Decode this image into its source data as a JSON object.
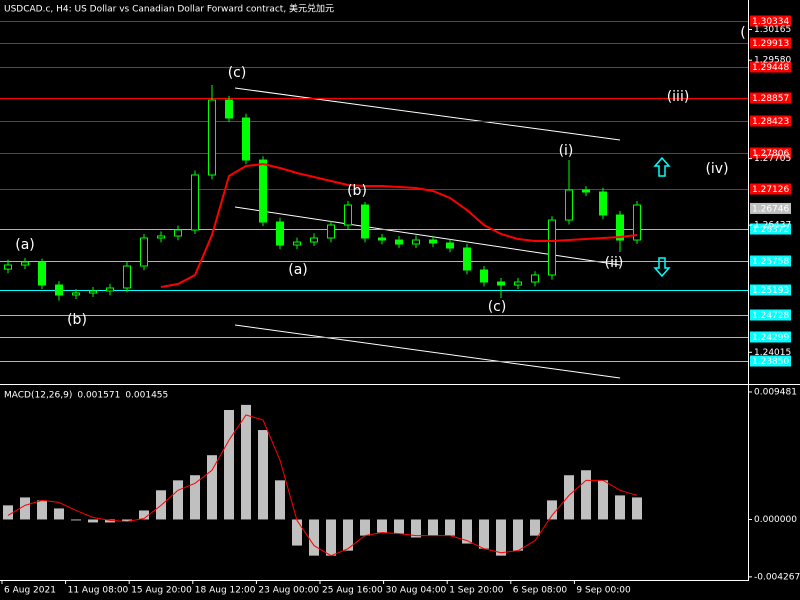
{
  "chart_data": [
    {
      "type": "candlestick",
      "title": "USDCAD.c, H4:  US Dollar vs Canadian Dollar Forward contract, 美元兑加元",
      "color": "#00ff00",
      "open": [
        1.256,
        1.25678,
        1.25735,
        1.25297,
        1.25107,
        1.25145,
        1.25183,
        1.2524,
        1.25659,
        1.26193,
        1.26231,
        1.26345,
        1.27393,
        1.28821,
        1.28479,
        1.27678,
        1.26497,
        1.26059,
        1.26116,
        1.26193,
        1.2644,
        1.26821,
        1.26193,
        1.26154,
        1.26078,
        1.26154,
        1.26097,
        1.26002,
        1.25583,
        1.25354,
        1.25297,
        1.25354,
        1.25488,
        1.26535,
        1.27107,
        1.27069,
        1.26631,
        1.26154
      ],
      "high": [
        1.2578,
        1.25815,
        1.258,
        1.2537,
        1.2522,
        1.2526,
        1.2532,
        1.2574,
        1.2627,
        1.2632,
        1.2643,
        1.2748,
        1.29107,
        1.289,
        1.2856,
        1.2775,
        1.2658,
        1.262,
        1.2628,
        1.2652,
        1.269,
        1.2688,
        1.2627,
        1.2623,
        1.2624,
        1.2623,
        1.2617,
        1.2608,
        1.2566,
        1.2543,
        1.2543,
        1.2556,
        1.2661,
        1.27678,
        1.2718,
        1.2715,
        1.2671,
        1.269
      ],
      "low": [
        1.2552,
        1.256,
        1.2522,
        1.25,
        1.2503,
        1.2507,
        1.251,
        1.2516,
        1.2558,
        1.2611,
        1.2615,
        1.2627,
        1.2731,
        1.284,
        1.276,
        1.2642,
        1.2598,
        1.2598,
        1.2604,
        1.2611,
        1.2636,
        1.2611,
        1.2607,
        1.26,
        1.26,
        1.2602,
        1.2592,
        1.255,
        1.2527,
        1.2505,
        1.2522,
        1.2527,
        1.254,
        1.2645,
        1.2699,
        1.2655,
        1.25926,
        1.2608
      ],
      "close": [
        1.25678,
        1.25735,
        1.25297,
        1.25107,
        1.25145,
        1.25183,
        1.2524,
        1.25659,
        1.26193,
        1.26231,
        1.26345,
        1.27393,
        1.28821,
        1.28479,
        1.27678,
        1.26497,
        1.26059,
        1.26116,
        1.26193,
        1.2644,
        1.26821,
        1.26193,
        1.26154,
        1.26078,
        1.26154,
        1.26097,
        1.26002,
        1.25583,
        1.25354,
        1.25297,
        1.25354,
        1.25488,
        1.26535,
        1.27107,
        1.27069,
        1.26631,
        1.26154,
        1.26821
      ],
      "ma": {
        "color": "#ff0000",
        "values": [
          null,
          null,
          null,
          null,
          null,
          null,
          null,
          null,
          null,
          1.25259,
          1.25316,
          1.25488,
          1.2625,
          1.27374,
          1.27564,
          1.27602,
          1.27526,
          1.27431,
          1.27355,
          1.27278,
          1.27202,
          1.27183,
          1.27183,
          1.27164,
          1.27145,
          1.27088,
          1.26955,
          1.26726,
          1.2644,
          1.26269,
          1.26173,
          1.26135,
          1.26135,
          1.26154,
          1.26173,
          1.26193,
          1.26212,
          1.2625
        ]
      },
      "ylim": [
        1.2343,
        1.3067
      ],
      "yticks": [
        1.30165,
        {
          "value": 1.2958,
          "label": "1.29580"
        },
        1.27705,
        1.26437,
        1.24015
      ],
      "levels": [
        {
          "value": 1.30334,
          "color": "#ff0000"
        },
        {
          "value": 1.29913,
          "color": "#ff0000"
        },
        {
          "value": 1.29448,
          "color": "#ff0000"
        },
        {
          "value": 1.28857,
          "color": "#ff0000"
        },
        {
          "value": 1.28423,
          "color": "#ff0000"
        },
        {
          "value": 1.27806,
          "color": "#ff0000"
        },
        {
          "value": 1.27126,
          "color": "#ff0000"
        },
        {
          "value": 1.26372,
          "color": "#00ffff"
        },
        {
          "value": 1.25758,
          "color": "#00ffff"
        },
        {
          "value": 1.25193,
          "color": "#00ffff"
        },
        {
          "value": 1.24728,
          "color": "#00ffff"
        },
        {
          "value": 1.24299,
          "color": "#00ffff"
        },
        {
          "value": 1.2385,
          "label": "1.23850",
          "color": "#00ffff"
        }
      ],
      "last_price": 1.26746,
      "annotations": [
        "(a)",
        "(b)",
        "(c)",
        "(a)",
        "(b)",
        "(c)",
        "(i)",
        "(ii)",
        "(iii)",
        "(iv)",
        "("
      ],
      "time_labels": [
        "6 Aug 2021",
        "11 Aug 08:00",
        "15 Aug 20:00",
        "18 Aug 12:00",
        "23 Aug 00:00",
        "25 Aug 16:00",
        "30 Aug 04:00",
        "1 Sep 20:00",
        "6 Sep 08:00",
        "9 Sep 00:00"
      ]
    },
    {
      "type": "macd",
      "title": "MACD(12,26,9)",
      "macd_value": 0.001571,
      "signal_value": 0.001455,
      "histogram": {
        "color": "#c0c0c0",
        "values": [
          0.00105,
          0.00164,
          0.00142,
          0.00082,
          -7e-05,
          -0.00022,
          -0.00022,
          -0.00015,
          0.00067,
          0.00217,
          0.00291,
          0.00329,
          0.00478,
          0.00814,
          0.00852,
          0.00665,
          0.00291,
          -0.00194,
          -0.00269,
          -0.00269,
          -0.00232,
          -0.0012,
          -0.00097,
          -0.00105,
          -0.00134,
          -0.0012,
          -0.0012,
          -0.00179,
          -0.00217,
          -0.00269,
          -0.00232,
          -0.0012,
          0.00142,
          0.00329,
          0.00366,
          0.00291,
          0.00179,
          0.00164
        ]
      },
      "signal": {
        "color": "#ff0000",
        "values": [
          0.0003,
          0.00105,
          0.00142,
          0.00127,
          0.00067,
          0.00015,
          -7e-05,
          -0.00015,
          7e-05,
          0.00105,
          0.00217,
          0.00269,
          0.00366,
          0.0059,
          0.00777,
          0.0074,
          0.00441,
          -7e-05,
          -0.00194,
          -0.00269,
          -0.00217,
          -0.0012,
          -0.00097,
          -0.00105,
          -0.0012,
          -0.0012,
          -0.0012,
          -0.00157,
          -0.00217,
          -0.00247,
          -0.00232,
          -0.00157,
          0.0003,
          0.00179,
          0.00291,
          0.00291,
          0.00217,
          0.00179
        ]
      },
      "ylim": [
        -0.0045,
        0.00985
      ],
      "yticks": [
        0.009481,
        {
          "value": 0,
          "label": "0.000000"
        },
        -0.004267
      ]
    }
  ]
}
